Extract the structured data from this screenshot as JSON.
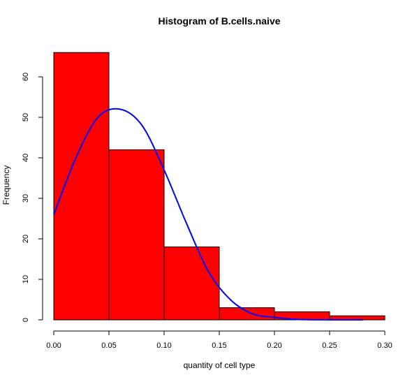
{
  "chart_data": {
    "type": "bar",
    "title": "Histogram of B.cells.naive",
    "xlabel": "quantity of cell type",
    "ylabel": "Frequency",
    "bins": [
      {
        "from": 0.0,
        "to": 0.05,
        "count": 66
      },
      {
        "from": 0.05,
        "to": 0.1,
        "count": 42
      },
      {
        "from": 0.1,
        "to": 0.15,
        "count": 18
      },
      {
        "from": 0.15,
        "to": 0.2,
        "count": 3
      },
      {
        "from": 0.2,
        "to": 0.25,
        "count": 2
      },
      {
        "from": 0.25,
        "to": 0.3,
        "count": 1
      }
    ],
    "xlim": [
      0.0,
      0.3
    ],
    "ylim": [
      0,
      70
    ],
    "x_ticks": [
      "0.00",
      "0.05",
      "0.10",
      "0.15",
      "0.20",
      "0.25",
      "0.30"
    ],
    "y_ticks": [
      "0",
      "10",
      "20",
      "30",
      "40",
      "50",
      "60"
    ],
    "density_curve": {
      "x": [
        0.0,
        0.02,
        0.04,
        0.06,
        0.08,
        0.1,
        0.12,
        0.14,
        0.16,
        0.18,
        0.2,
        0.22,
        0.24,
        0.26,
        0.28
      ],
      "y": [
        26,
        40,
        50,
        52,
        48,
        37,
        24,
        12,
        5,
        1.5,
        0.6,
        0.1,
        0.02,
        0.0,
        0.0
      ]
    },
    "colors": {
      "bar_fill": "#ff0000",
      "bar_border": "#000000",
      "curve": "#0000ff"
    },
    "grid": false,
    "legend": "none"
  }
}
